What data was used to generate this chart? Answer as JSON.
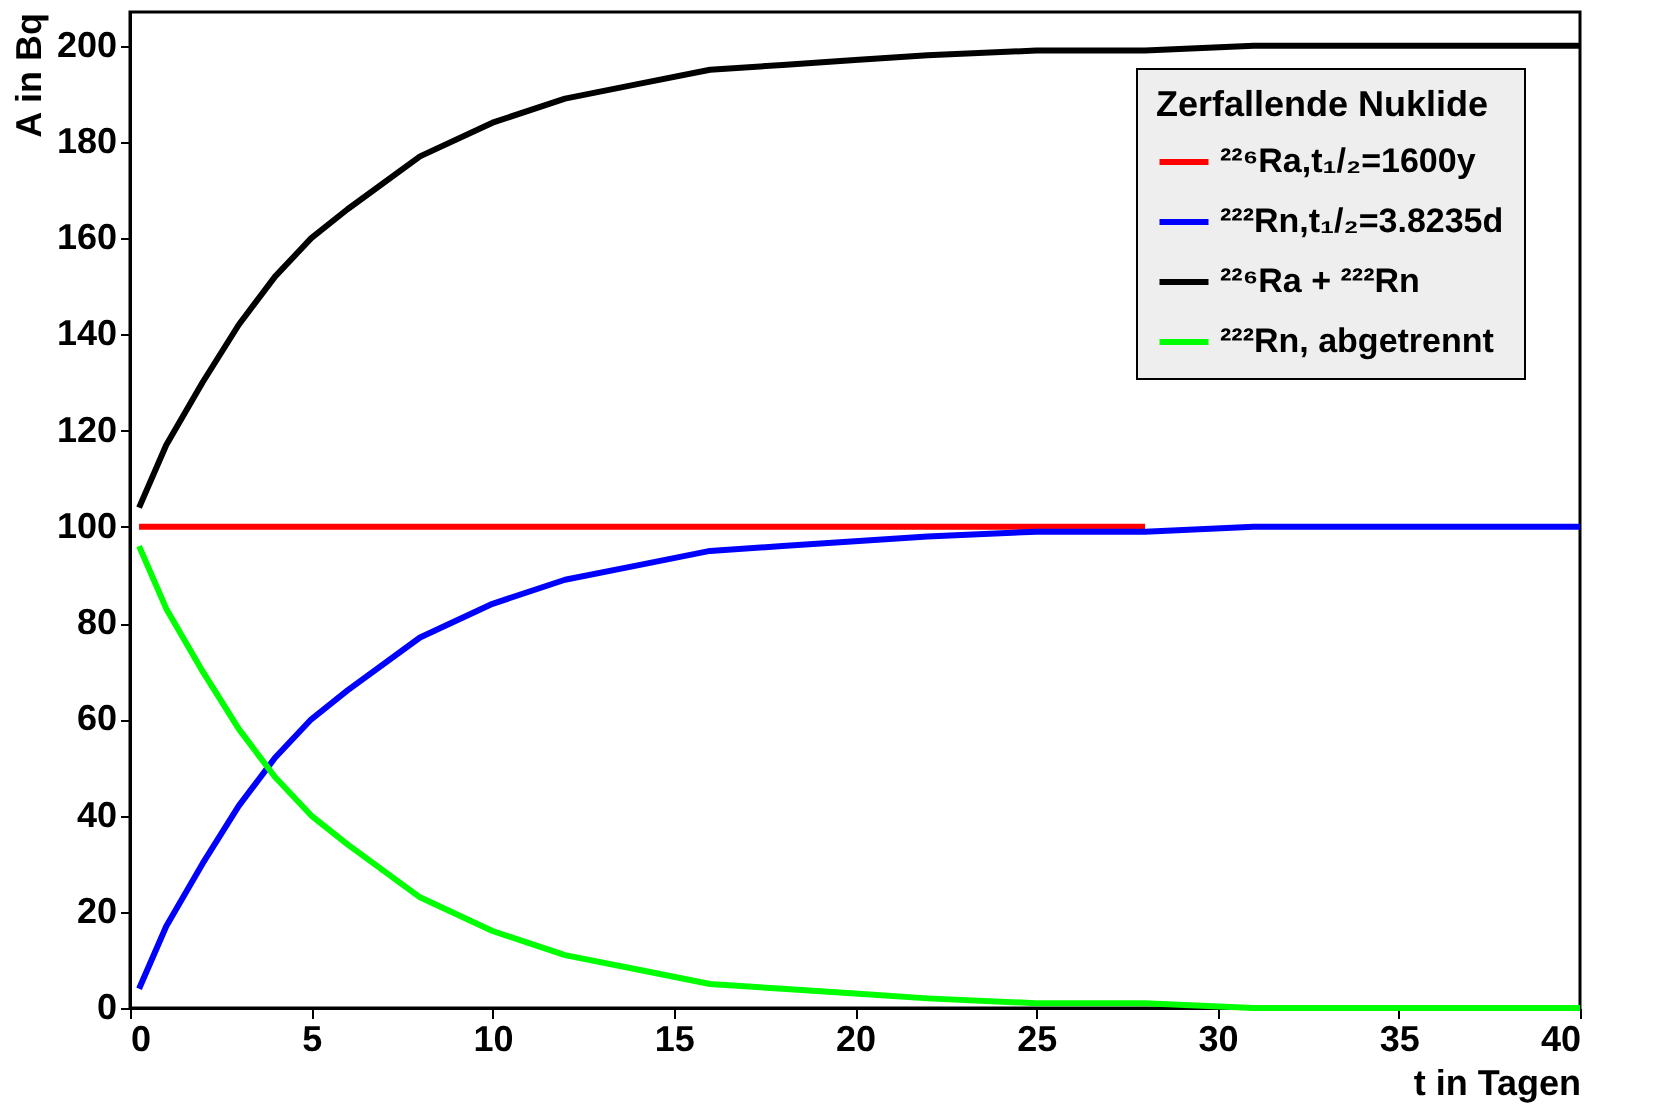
{
  "chart_data": {
    "type": "line",
    "xlabel": "t in Tagen",
    "ylabel": "A in Bq",
    "legend_title": "Zerfallende Nuklide",
    "x": [
      0.25,
      1,
      2,
      3,
      4,
      5,
      6,
      8,
      10,
      12,
      14,
      16,
      18,
      20,
      22,
      25,
      28,
      31,
      34,
      37,
      40
    ],
    "series": [
      {
        "name": "²²⁶Ra,t₁/₂=1600y",
        "color": "#ff0000",
        "values": [
          100,
          100,
          100,
          100,
          100,
          100,
          100,
          100,
          100,
          100,
          100,
          100,
          100,
          100,
          100,
          100,
          100,
          null,
          null,
          null,
          null
        ]
      },
      {
        "name": "²²²Rn,t₁/₂=3.8235d",
        "color": "#0000ff",
        "values": [
          4,
          17,
          30,
          42,
          52,
          60,
          66,
          77,
          84,
          89,
          92,
          95,
          96,
          97,
          98,
          99,
          99,
          100,
          100,
          100,
          100
        ]
      },
      {
        "name": "²²⁶Ra + ²²²Rn",
        "color": "#000000",
        "values": [
          104,
          117,
          130,
          142,
          152,
          160,
          166,
          177,
          184,
          189,
          192,
          195,
          196,
          197,
          198,
          199,
          199,
          200,
          200,
          200,
          200
        ]
      },
      {
        "name": "²²²Rn, abgetrennt",
        "color": "#00ff00",
        "values": [
          96,
          83,
          70,
          58,
          48,
          40,
          34,
          23,
          16,
          11,
          8,
          5,
          4,
          3,
          2,
          1,
          1,
          0,
          0,
          0,
          0
        ]
      }
    ],
    "xlim": [
      0,
      40
    ],
    "ylim": [
      0,
      207
    ],
    "xticks": [
      0,
      5,
      10,
      15,
      20,
      25,
      30,
      35,
      40
    ],
    "yticks": [
      0,
      20,
      40,
      60,
      80,
      100,
      120,
      140,
      160,
      180,
      200
    ],
    "grid": false,
    "legend": "top right",
    "marker": "none",
    "line_style": "solid"
  }
}
